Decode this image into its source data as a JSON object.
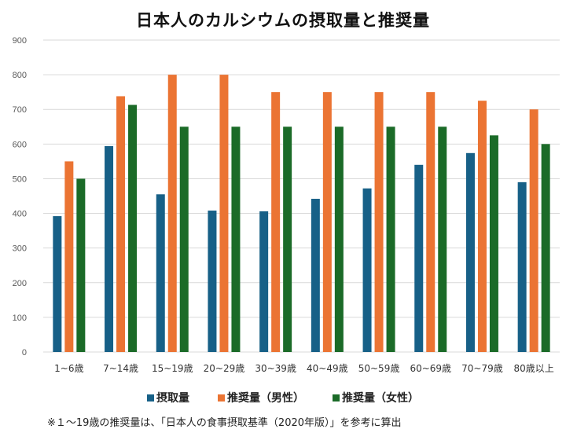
{
  "chart_data": {
    "type": "bar",
    "title": "日本人のカルシウムの摂取量と推奨量",
    "xlabel": "",
    "ylabel": "",
    "ylim": [
      0,
      900
    ],
    "yticks": [
      0,
      100,
      200,
      300,
      400,
      500,
      600,
      700,
      800,
      900
    ],
    "grid": true,
    "legend_position": "bottom",
    "categories": [
      "1~6歳",
      "7~14歳",
      "15~19歳",
      "20~29歳",
      "30~39歳",
      "40~49歳",
      "50~59歳",
      "60~69歳",
      "70~79歳",
      "80歳以上"
    ],
    "series": [
      {
        "name": "摂取量",
        "color": "#176087",
        "values": [
          392,
          594,
          455,
          408,
          406,
          442,
          472,
          540,
          574,
          490
        ]
      },
      {
        "name": "推奨量（男性）",
        "color": "#EB7433",
        "values": [
          550,
          738,
          800,
          800,
          750,
          750,
          750,
          750,
          725,
          700
        ]
      },
      {
        "name": "推奨量（女性）",
        "color": "#1B6B28",
        "values": [
          500,
          713,
          650,
          650,
          650,
          650,
          650,
          650,
          625,
          600
        ]
      }
    ],
    "note": "※１～19歳の推奨量は、「日本人の食事摂取基準（2020年版）」を参考に算出"
  }
}
